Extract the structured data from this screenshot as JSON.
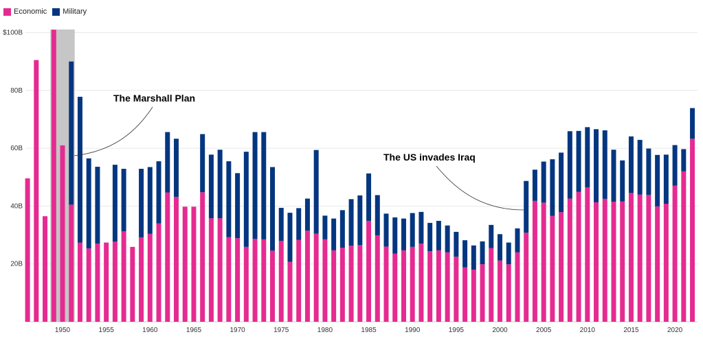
{
  "chart_data": {
    "type": "bar",
    "stacked": true,
    "title": "",
    "xlabel": "",
    "ylabel": "",
    "ylim": [
      0,
      100
    ],
    "grid": true,
    "legend_position": "top-left",
    "y_ticks": [
      {
        "value": 20,
        "label": "20B"
      },
      {
        "value": 40,
        "label": "40B"
      },
      {
        "value": 60,
        "label": "60B"
      },
      {
        "value": 80,
        "label": "80B"
      },
      {
        "value": 100,
        "label": "$100B"
      }
    ],
    "x_ticks": [
      1950,
      1955,
      1960,
      1965,
      1970,
      1975,
      1980,
      1985,
      1990,
      1995,
      2000,
      2005,
      2010,
      2015,
      2020
    ],
    "categories": [
      1946,
      1947,
      1948,
      1949,
      1950,
      1951,
      1952,
      1953,
      1954,
      1955,
      1956,
      1957,
      1958,
      1959,
      1960,
      1961,
      1962,
      1963,
      1964,
      1965,
      1966,
      1967,
      1968,
      1969,
      1970,
      1971,
      1972,
      1973,
      1974,
      1975,
      1976,
      1977,
      1978,
      1979,
      1980,
      1981,
      1982,
      1983,
      1984,
      1985,
      1986,
      1987,
      1988,
      1989,
      1990,
      1991,
      1992,
      1993,
      1994,
      1995,
      1996,
      1997,
      1998,
      1999,
      2000,
      2001,
      2002,
      2003,
      2004,
      2005,
      2006,
      2007,
      2008,
      2009,
      2010,
      2011,
      2012,
      2013,
      2014,
      2015,
      2016,
      2017,
      2018,
      2019,
      2020,
      2021,
      2022
    ],
    "series": [
      {
        "name": "Economic",
        "color": "#e52b91",
        "values": [
          49.6,
          90.5,
          36.5,
          101,
          61,
          40.5,
          27.4,
          25.4,
          27,
          27.4,
          27.7,
          31.3,
          25.9,
          29.2,
          30.4,
          34,
          44.7,
          43.2,
          39.8,
          39.8,
          44.8,
          35.8,
          35.8,
          29.3,
          28.9,
          25.9,
          28.7,
          28.5,
          24.6,
          28,
          20.7,
          28.3,
          31.5,
          30.5,
          28.5,
          24.7,
          25.6,
          26.3,
          26.5,
          34.9,
          29.9,
          26,
          23.6,
          24.7,
          25.9,
          27,
          24.4,
          24.7,
          24,
          22.5,
          18.8,
          18,
          19.9,
          25.5,
          21.2,
          19.9,
          24,
          30.8,
          41.8,
          41.2,
          36.6,
          37.9,
          42.6,
          44.9,
          46.5,
          41.3,
          42.5,
          41.5,
          41.6,
          44.6,
          44,
          43.9,
          39.9,
          40.8,
          47.1,
          52,
          63.3
        ]
      },
      {
        "name": "Military",
        "color": "#043680",
        "values": [
          0,
          0,
          0,
          0,
          0,
          49.5,
          50.4,
          31.1,
          26.6,
          0,
          26.6,
          21.6,
          0,
          23.7,
          23.1,
          21.5,
          20.9,
          20.1,
          0,
          0,
          20.1,
          22,
          23.7,
          26.2,
          22.5,
          32.9,
          36.9,
          37.1,
          28.9,
          11.4,
          17,
          11,
          11.1,
          28.9,
          8.2,
          11,
          13,
          16.1,
          17.2,
          16.4,
          13.9,
          11.4,
          12.5,
          11,
          11.7,
          11,
          9.8,
          10.2,
          9.3,
          8.6,
          9.4,
          8.4,
          7.9,
          8,
          9.1,
          7.5,
          8.3,
          17.9,
          10.8,
          14.2,
          19.6,
          20.6,
          23.3,
          21.1,
          20.8,
          25.3,
          23.7,
          18,
          14.2,
          19.5,
          18.9,
          16,
          17.8,
          17,
          14,
          7.7,
          10.6
        ]
      }
    ],
    "highlight_range": [
      1949,
      1951
    ],
    "annotations": [
      {
        "text": "The Marshall Plan",
        "year": 1951
      },
      {
        "text": "The US invades Iraq",
        "year": 2003
      }
    ]
  }
}
